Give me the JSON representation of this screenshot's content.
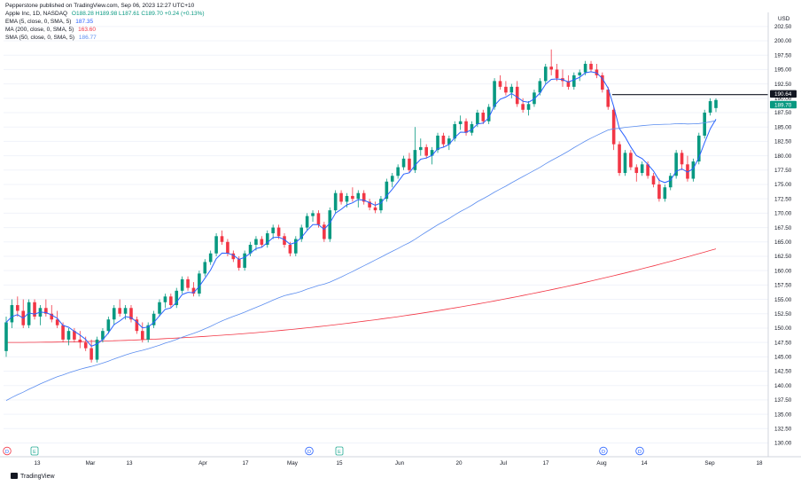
{
  "header": {
    "publisher_line": "Pepperstone published on TradingView.com, Sep 06, 2023 12:27 UTC+10",
    "symbol_line_label": "Apple Inc, 1D, NASDAQ",
    "ohlc": "O188.28 H189.98 L187.61 C189.70 +0.24 (+0.13%)",
    "ema_label": "EMA (5, close, 0, SMA, 5)",
    "ema_value": "187.35",
    "ma_label": "MA (200, close, 0, SMA, 5)",
    "ma_value": "163.60",
    "sma_label": "SMA (50, close, 0, SMA, 5)",
    "sma_value": "186.77"
  },
  "currency": "USD",
  "footer": {
    "brand": "TradingView"
  },
  "colors": {
    "up": "#089981",
    "down": "#f23645",
    "ema": "#2962ff",
    "ma": "#f23645",
    "sma": "#5b8def",
    "level": "#131722"
  },
  "chart_data": {
    "type": "candlestick",
    "yticks": [
      "130.00",
      "132.50",
      "135.00",
      "137.50",
      "140.00",
      "142.50",
      "145.00",
      "147.50",
      "150.00",
      "152.50",
      "155.00",
      "157.50",
      "160.00",
      "162.50",
      "165.00",
      "167.50",
      "170.00",
      "172.50",
      "175.00",
      "177.50",
      "180.00",
      "182.50",
      "185.00",
      "187.50",
      "190.00",
      "192.50",
      "195.00",
      "197.50",
      "200.00",
      "202.50"
    ],
    "ylim": [
      128.5,
      203.5
    ],
    "xticks": [
      "13",
      "Mar",
      "13",
      "Apr",
      "17",
      "May",
      "15",
      "Jun",
      "20",
      "Jul",
      "17",
      "Aug",
      "14",
      "Sep",
      "18"
    ],
    "price_labels": [
      {
        "label": "190.64",
        "value": 190.64,
        "style": "dark"
      },
      {
        "label": "189.70",
        "value": 189.7,
        "style": "green"
      }
    ],
    "level_line": 190.64,
    "event_markers": [
      "D",
      "E",
      "D",
      "E",
      "D",
      "D"
    ],
    "candles": [
      [
        146,
        152,
        145,
        151
      ],
      [
        151,
        155,
        150,
        154
      ],
      [
        154,
        155.5,
        152,
        153
      ],
      [
        153,
        155,
        150,
        150.5
      ],
      [
        150.5,
        155,
        150,
        154.5
      ],
      [
        154.5,
        155,
        151.5,
        152
      ],
      [
        152,
        154,
        150.5,
        153.5
      ],
      [
        153.5,
        155,
        152,
        152.5
      ],
      [
        152.5,
        154,
        151,
        151.5
      ],
      [
        151.5,
        153,
        150,
        150.5
      ],
      [
        150.5,
        151,
        147.5,
        148
      ],
      [
        148,
        150,
        147,
        149.5
      ],
      [
        149.5,
        150,
        147.5,
        148
      ],
      [
        148,
        149.5,
        146.5,
        147.5
      ],
      [
        147.5,
        148.5,
        146,
        146.5
      ],
      [
        146.5,
        148,
        144,
        144.5
      ],
      [
        144.5,
        148.5,
        144,
        148
      ],
      [
        148,
        150,
        147.5,
        149.5
      ],
      [
        149.5,
        152,
        149,
        151.5
      ],
      [
        151.5,
        154,
        150.5,
        153.5
      ],
      [
        153.5,
        155,
        152,
        152.5
      ],
      [
        152.5,
        154,
        151.5,
        153.5
      ],
      [
        153.5,
        154,
        151,
        151.5
      ],
      [
        151.5,
        152,
        149,
        149.5
      ],
      [
        149.5,
        151,
        147.5,
        148
      ],
      [
        148,
        151,
        147.5,
        150.5
      ],
      [
        150.5,
        153,
        150,
        152.5
      ],
      [
        152.5,
        155,
        152,
        154.5
      ],
      [
        154.5,
        156,
        153.5,
        155.5
      ],
      [
        155.5,
        156,
        153.5,
        154
      ],
      [
        154,
        157,
        153.5,
        156.5
      ],
      [
        156.5,
        159,
        156,
        158.5
      ],
      [
        158.5,
        159,
        156.5,
        157
      ],
      [
        157,
        158,
        155.5,
        156
      ],
      [
        156,
        160,
        155.5,
        159.5
      ],
      [
        159.5,
        162,
        159,
        161.5
      ],
      [
        161.5,
        163.5,
        161,
        163
      ],
      [
        163,
        166.5,
        162.5,
        166
      ],
      [
        166,
        167,
        164.5,
        165
      ],
      [
        165,
        165.5,
        162.5,
        163
      ],
      [
        163,
        163.5,
        161.5,
        162
      ],
      [
        162,
        162.5,
        160,
        160.5
      ],
      [
        160.5,
        163.5,
        160,
        163
      ],
      [
        163,
        165,
        162.5,
        164.5
      ],
      [
        164.5,
        166,
        163.5,
        165.5
      ],
      [
        165.5,
        166,
        164,
        164.5
      ],
      [
        164.5,
        167,
        164,
        166.5
      ],
      [
        166.5,
        168,
        165.5,
        167.5
      ],
      [
        167.5,
        168,
        165.5,
        166
      ],
      [
        166,
        166.5,
        164,
        164.5
      ],
      [
        164.5,
        165,
        162.5,
        163
      ],
      [
        163,
        166,
        162.5,
        165.5
      ],
      [
        165.5,
        168,
        165,
        167.5
      ],
      [
        167.5,
        170,
        167,
        169.5
      ],
      [
        169.5,
        170.5,
        168.5,
        170
      ],
      [
        170,
        170.5,
        167.5,
        168
      ],
      [
        168,
        168.5,
        165,
        165.5
      ],
      [
        165.5,
        171,
        165,
        170.5
      ],
      [
        170.5,
        174,
        170,
        173.5
      ],
      [
        173.5,
        174,
        171.5,
        172
      ],
      [
        172,
        173.5,
        171,
        173
      ],
      [
        173,
        174.5,
        172,
        172.5
      ],
      [
        172.5,
        174,
        171,
        173.5
      ],
      [
        173.5,
        174,
        171.5,
        172
      ],
      [
        172,
        172.5,
        170.5,
        171
      ],
      [
        171,
        172,
        170,
        170.5
      ],
      [
        170.5,
        173,
        170,
        172.5
      ],
      [
        172.5,
        176,
        172,
        175.5
      ],
      [
        175.5,
        177,
        174.5,
        176.5
      ],
      [
        176.5,
        178.5,
        176,
        178
      ],
      [
        178,
        180,
        177.5,
        179.5
      ],
      [
        179.5,
        180.5,
        177,
        177.5
      ],
      [
        177.5,
        185,
        177,
        181
      ],
      [
        181,
        183,
        180,
        181.5
      ],
      [
        181.5,
        182,
        179.5,
        180
      ],
      [
        180,
        181.5,
        178.5,
        181
      ],
      [
        181,
        184,
        180.5,
        183.5
      ],
      [
        183.5,
        184,
        181.5,
        182
      ],
      [
        182,
        183.5,
        181,
        183
      ],
      [
        183,
        186,
        182.5,
        185.5
      ],
      [
        185.5,
        187,
        184.5,
        186
      ],
      [
        186,
        186.5,
        183.5,
        184
      ],
      [
        184,
        186,
        183.5,
        185.5
      ],
      [
        185.5,
        188,
        185,
        187.5
      ],
      [
        187.5,
        188,
        185.5,
        186
      ],
      [
        186,
        189,
        185.5,
        188.5
      ],
      [
        188.5,
        193.5,
        188,
        193
      ],
      [
        193,
        194,
        191.5,
        192
      ],
      [
        192,
        193,
        190.5,
        191
      ],
      [
        191,
        192.5,
        190,
        192
      ],
      [
        192,
        193,
        188.5,
        189
      ],
      [
        189,
        190,
        187.5,
        188
      ],
      [
        188,
        189.5,
        187,
        189
      ],
      [
        189,
        191.5,
        188.5,
        191
      ],
      [
        191,
        193.5,
        190.5,
        193
      ],
      [
        193,
        196,
        192.5,
        195.5
      ],
      [
        195.5,
        198.5,
        194,
        195
      ],
      [
        195,
        196,
        193,
        193.5
      ],
      [
        193.5,
        195,
        192,
        193
      ],
      [
        193,
        194,
        191.5,
        192
      ],
      [
        192,
        194.5,
        191.5,
        194
      ],
      [
        194,
        195,
        193,
        194.5
      ],
      [
        194.5,
        196.5,
        194,
        196
      ],
      [
        196,
        196.5,
        194.5,
        195
      ],
      [
        195,
        196,
        193.5,
        194
      ],
      [
        194,
        194.5,
        191,
        191.5
      ],
      [
        191.5,
        192,
        188,
        188.5
      ],
      [
        188,
        188.5,
        181,
        182
      ],
      [
        182,
        182.5,
        176.5,
        177
      ],
      [
        177,
        181,
        176.5,
        180.5
      ],
      [
        180.5,
        181,
        177.5,
        178
      ],
      [
        178,
        178.5,
        175.5,
        177
      ],
      [
        177,
        179,
        176.5,
        178.5
      ],
      [
        178.5,
        179,
        176,
        176.5
      ],
      [
        176.5,
        177,
        174.5,
        175
      ],
      [
        175,
        176,
        172,
        172.5
      ],
      [
        172.5,
        175,
        172,
        174.5
      ],
      [
        174.5,
        177,
        174,
        176.5
      ],
      [
        176.5,
        181,
        176,
        180.5
      ],
      [
        180.5,
        181,
        177.5,
        178.5
      ],
      [
        178.5,
        180,
        175.5,
        176
      ],
      [
        176,
        179.5,
        175.5,
        179
      ],
      [
        179,
        184,
        178.5,
        183.5
      ],
      [
        183.5,
        188,
        183,
        187.5
      ],
      [
        187.5,
        190,
        187,
        189.5
      ],
      [
        188.3,
        190,
        187.6,
        189.7
      ]
    ],
    "series": [
      {
        "name": "EMA (5, close, 0, SMA, 5)"
      },
      {
        "name": "MA (200, close, 0, SMA, 5)"
      },
      {
        "name": "SMA (50, close, 0, SMA, 5)"
      }
    ]
  }
}
